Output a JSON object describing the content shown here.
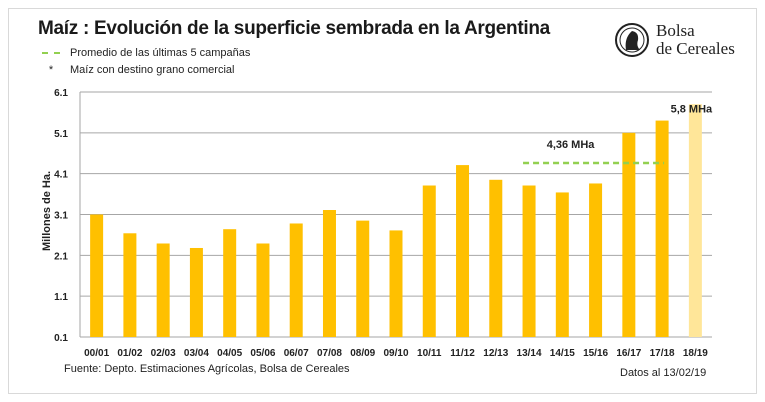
{
  "title": "Maíz : Evolución de la superficie sembrada en la Argentina",
  "legend": [
    {
      "symbol": "dashed-line",
      "label": "Promedio de las últimas 5 campañas",
      "color": "#92d050"
    },
    {
      "symbol": "*",
      "label": "Maíz con destino grano comercial"
    }
  ],
  "logo": {
    "line1": "Bolsa",
    "line2": "de Cereales"
  },
  "footer": {
    "source": "Fuente: Depto. Estimaciones Agrícolas, Bolsa de Cereales",
    "date": "Datos al  13/02/19"
  },
  "chart_data": {
    "type": "bar",
    "ylabel": "Millones de Ha.",
    "ylim": [
      0.1,
      6.1
    ],
    "yticks": [
      "0.1",
      "1.1",
      "2.1",
      "3.1",
      "4.1",
      "5.1",
      "6.1"
    ],
    "grid": true,
    "categories": [
      "00/01",
      "01/02",
      "02/03",
      "03/04",
      "04/05",
      "05/06",
      "06/07",
      "07/08",
      "08/09",
      "09/10",
      "10/11",
      "11/12",
      "12/13",
      "13/14",
      "14/15",
      "15/16",
      "16/17",
      "17/18",
      "18/19"
    ],
    "values": [
      3.1,
      2.64,
      2.39,
      2.28,
      2.74,
      2.39,
      2.88,
      3.21,
      2.95,
      2.71,
      3.81,
      4.31,
      3.95,
      3.81,
      3.64,
      3.86,
      5.1,
      5.4,
      5.8
    ],
    "bar_color": "#ffc000",
    "estimate_bar_color": "#ffe699",
    "average_line": {
      "value": 4.36,
      "from": "13/14",
      "to": "17/18",
      "label": "4,36 MHa",
      "color": "#92d050"
    },
    "annotations": [
      {
        "category": "18/19",
        "label": "5,8 MHa"
      }
    ]
  }
}
